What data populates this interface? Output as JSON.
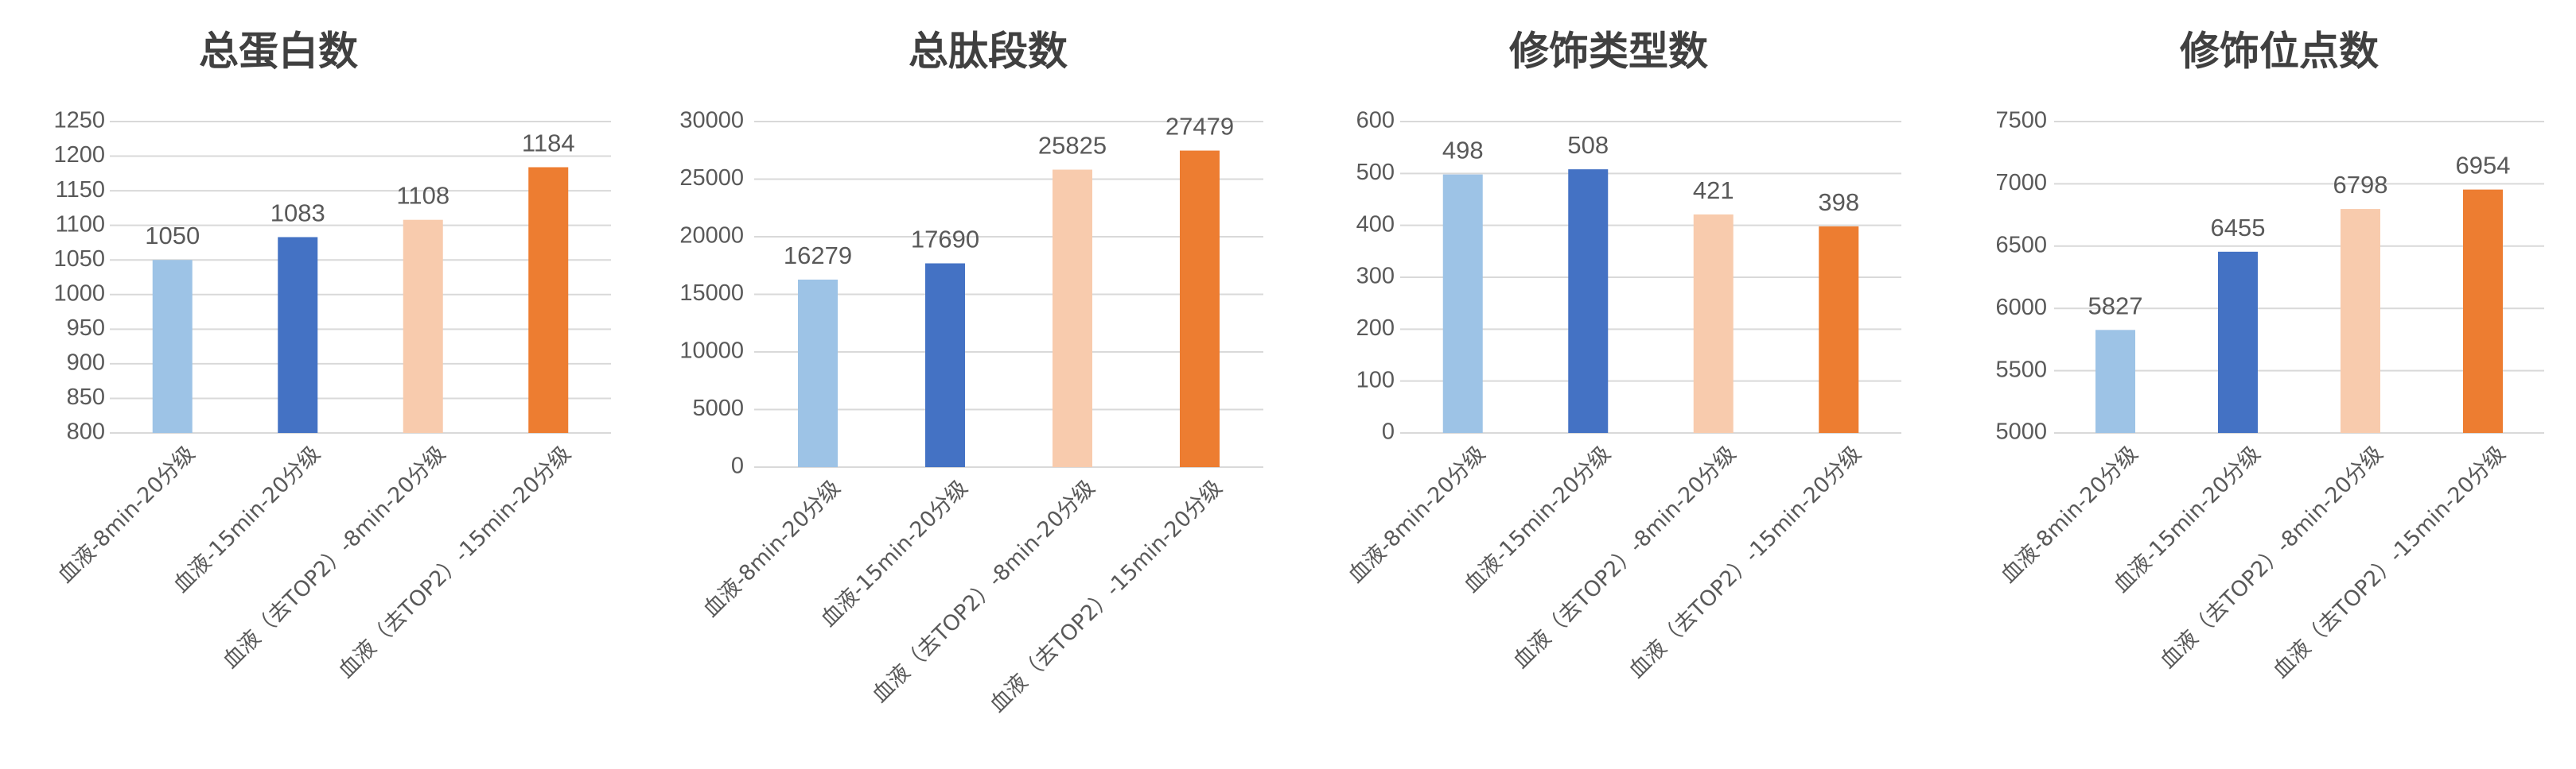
{
  "chart_data": [
    {
      "type": "bar",
      "title": "总蛋白数",
      "categories": [
        "血液-8min-20分级",
        "血液-15min-20分级",
        "血液（去TOP2）-8min-20分级",
        "血液（去TOP2）-15min-20分级"
      ],
      "values": [
        1050,
        1083,
        1108,
        1184
      ],
      "ylim": [
        800,
        1250
      ],
      "yticks": [
        800,
        850,
        900,
        950,
        1000,
        1050,
        1100,
        1150,
        1200,
        1250
      ],
      "xlabel": "",
      "ylabel": "",
      "grid": true,
      "bar_colors": [
        "#9dc3e6",
        "#4472c4",
        "#f8cbad",
        "#ed7d31"
      ]
    },
    {
      "type": "bar",
      "title": "总肽段数",
      "categories": [
        "血液-8min-20分级",
        "血液-15min-20分级",
        "血液（去TOP2）-8min-20分级",
        "血液（去TOP2）-15min-20分级"
      ],
      "values": [
        16279,
        17690,
        25825,
        27479
      ],
      "ylim": [
        0,
        30000
      ],
      "yticks": [
        0,
        5000,
        10000,
        15000,
        20000,
        25000,
        30000
      ],
      "xlabel": "",
      "ylabel": "",
      "grid": true,
      "bar_colors": [
        "#9dc3e6",
        "#4472c4",
        "#f8cbad",
        "#ed7d31"
      ]
    },
    {
      "type": "bar",
      "title": "修饰类型数",
      "categories": [
        "血液-8min-20分级",
        "血液-15min-20分级",
        "血液（去TOP2）-8min-20分级",
        "血液（去TOP2）-15min-20分级"
      ],
      "values": [
        498,
        508,
        421,
        398
      ],
      "ylim": [
        0,
        600
      ],
      "yticks": [
        0,
        100,
        200,
        300,
        400,
        500,
        600
      ],
      "xlabel": "",
      "ylabel": "",
      "grid": true,
      "bar_colors": [
        "#9dc3e6",
        "#4472c4",
        "#f8cbad",
        "#ed7d31"
      ]
    },
    {
      "type": "bar",
      "title": "修饰位点数",
      "categories": [
        "血液-8min-20分级",
        "血液-15min-20分级",
        "血液（去TOP2）-8min-20分级",
        "血液（去TOP2）-15min-20分级"
      ],
      "values": [
        5827,
        6455,
        6798,
        6954
      ],
      "ylim": [
        5000,
        7500
      ],
      "yticks": [
        5000,
        5500,
        6000,
        6500,
        7000,
        7500
      ],
      "xlabel": "",
      "ylabel": "",
      "grid": true,
      "bar_colors": [
        "#9dc3e6",
        "#4472c4",
        "#f8cbad",
        "#ed7d31"
      ]
    }
  ]
}
